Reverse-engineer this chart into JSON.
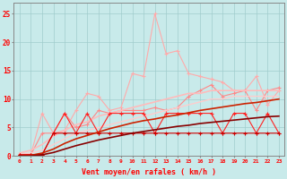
{
  "x": [
    0,
    1,
    2,
    3,
    4,
    5,
    6,
    7,
    8,
    9,
    10,
    11,
    12,
    13,
    14,
    15,
    16,
    17,
    18,
    19,
    20,
    21,
    22,
    23
  ],
  "series": [
    {
      "name": "lightest_pink_volatile",
      "color": "#ffaaaa",
      "linewidth": 0.8,
      "marker": "+",
      "markersize": 3,
      "y": [
        0.3,
        0.2,
        7.5,
        4.0,
        4.5,
        8.0,
        11.0,
        10.5,
        8.0,
        8.5,
        14.5,
        14.0,
        25.0,
        18.0,
        18.5,
        14.5,
        14.0,
        13.5,
        13.0,
        11.5,
        11.5,
        14.0,
        9.0,
        11.5
      ]
    },
    {
      "name": "medium_pink_volatile",
      "color": "#ff8888",
      "linewidth": 0.8,
      "marker": "+",
      "markersize": 3,
      "y": [
        0.2,
        0.2,
        4.0,
        4.0,
        7.5,
        5.0,
        5.5,
        8.0,
        7.5,
        8.0,
        8.0,
        8.0,
        8.5,
        8.0,
        8.5,
        10.5,
        11.5,
        12.5,
        10.5,
        11.0,
        11.5,
        8.0,
        11.5,
        12.0
      ]
    },
    {
      "name": "pink_smooth_upper",
      "color": "#ffbbbb",
      "linewidth": 1.2,
      "marker": null,
      "markersize": 0,
      "y": [
        0.5,
        1.0,
        2.0,
        3.5,
        4.5,
        5.5,
        6.0,
        7.0,
        7.5,
        8.0,
        8.5,
        9.0,
        9.5,
        10.0,
        10.5,
        11.0,
        11.0,
        11.5,
        11.5,
        11.5,
        11.5,
        11.5,
        11.5,
        11.5
      ]
    },
    {
      "name": "pink_smooth_lower",
      "color": "#ffcccc",
      "linewidth": 1.0,
      "marker": null,
      "markersize": 0,
      "y": [
        0.3,
        0.5,
        1.0,
        2.0,
        3.0,
        4.0,
        4.5,
        5.0,
        5.5,
        6.0,
        6.5,
        7.0,
        7.5,
        8.0,
        8.5,
        9.0,
        9.5,
        10.0,
        10.0,
        10.5,
        10.5,
        10.5,
        10.5,
        10.5
      ]
    },
    {
      "name": "red_zigzag",
      "color": "#ff2222",
      "linewidth": 0.8,
      "marker": "+",
      "markersize": 3,
      "y": [
        0.2,
        0.2,
        0.2,
        4.0,
        7.5,
        4.0,
        7.5,
        4.0,
        7.5,
        7.5,
        7.5,
        7.5,
        4.0,
        7.5,
        7.5,
        7.5,
        7.5,
        7.5,
        4.0,
        7.5,
        7.5,
        4.0,
        7.5,
        4.0
      ]
    },
    {
      "name": "red_flat",
      "color": "#cc0000",
      "linewidth": 0.8,
      "marker": "+",
      "markersize": 3,
      "y": [
        0.2,
        0.2,
        0.2,
        4.0,
        4.0,
        4.0,
        4.0,
        4.0,
        4.0,
        4.0,
        4.0,
        4.0,
        4.0,
        4.0,
        4.0,
        4.0,
        4.0,
        4.0,
        4.0,
        4.0,
        4.0,
        4.0,
        4.0,
        4.0
      ]
    },
    {
      "name": "dark_red_smooth1",
      "color": "#cc2200",
      "linewidth": 1.2,
      "marker": null,
      "markersize": 0,
      "y": [
        0.0,
        0.1,
        0.5,
        1.2,
        2.2,
        3.0,
        3.6,
        4.2,
        4.8,
        5.3,
        5.8,
        6.2,
        6.5,
        6.9,
        7.2,
        7.6,
        8.0,
        8.3,
        8.6,
        8.9,
        9.2,
        9.4,
        9.7,
        10.0
      ]
    },
    {
      "name": "dark_red_smooth2",
      "color": "#880000",
      "linewidth": 1.2,
      "marker": null,
      "markersize": 0,
      "y": [
        0.0,
        0.0,
        0.2,
        0.6,
        1.2,
        1.8,
        2.3,
        2.8,
        3.2,
        3.6,
        4.0,
        4.3,
        4.6,
        4.9,
        5.2,
        5.4,
        5.7,
        5.9,
        6.1,
        6.3,
        6.5,
        6.7,
        6.9,
        7.0
      ]
    }
  ],
  "xlim": [
    -0.5,
    23.5
  ],
  "ylim": [
    0,
    27
  ],
  "yticks": [
    0,
    5,
    10,
    15,
    20,
    25
  ],
  "xticks": [
    0,
    1,
    2,
    3,
    4,
    5,
    6,
    7,
    8,
    9,
    10,
    11,
    12,
    13,
    14,
    15,
    16,
    17,
    18,
    19,
    20,
    21,
    22,
    23
  ],
  "xlabel": "Vent moyen/en rafales ( km/h )",
  "background_color": "#c8eaea",
  "grid_color": "#a0cccc"
}
